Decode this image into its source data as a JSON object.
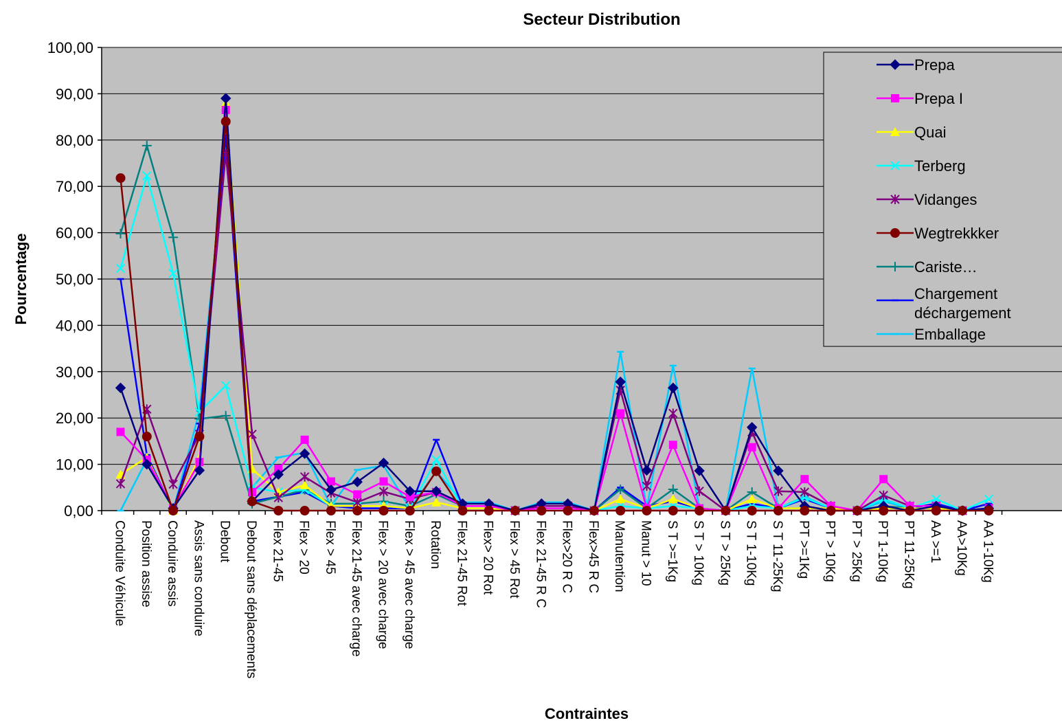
{
  "chart_data": {
    "type": "line",
    "title": "Secteur Distribution",
    "xlabel": "Contraintes",
    "ylabel": "Pourcentage",
    "ylim": [
      0,
      100
    ],
    "yticks": [
      "0,00",
      "10,00",
      "20,00",
      "30,00",
      "40,00",
      "50,00",
      "60,00",
      "70,00",
      "80,00",
      "90,00",
      "100,00"
    ],
    "grid": "horizontal",
    "legend_position": "top-right",
    "plot_background": "#c0c0c0",
    "categories": [
      "Conduite Véhicule",
      "Position assise",
      "Conduire assis",
      "Assis sans conduire",
      "Debout",
      "Debout sans déplacements",
      "Flex 21-45",
      "Flex > 20",
      "Flex > 45",
      "Flex 21-45 avec charge",
      "Flex > 20 avec charge",
      "Flex > 45 avec charge",
      "Rotation",
      "Flex 21-45 Rot",
      "Flex> 20 Rot",
      "Flex > 45 Rot",
      "Flex 21-45 R C",
      "Flex>20 R C",
      "Flex>45 R C",
      "Manutention",
      "Manut > 10",
      "S T >=1Kg",
      "S T > 10Kg",
      "S T > 25Kg",
      "S T 1-10Kg",
      "S T 11-25Kg",
      "PT >=1Kg",
      "PT > 10Kg",
      "PT > 25Kg",
      "PT 1-10Kg",
      "PT 11-25Kg",
      "AA >=1",
      "AA>10Kg",
      "AA 1-10Kg"
    ],
    "series": [
      {
        "name": "Prepa",
        "color": "#000080",
        "marker": "diamond",
        "values": [
          26.5,
          10,
          0.5,
          8.7,
          89,
          2,
          7.8,
          12.3,
          4.5,
          6.2,
          10.3,
          4.2,
          4.2,
          1.5,
          1.5,
          0,
          1.5,
          1.5,
          0,
          27.8,
          8.7,
          26.5,
          8.6,
          0,
          18,
          8.6,
          1,
          0,
          0,
          1,
          0,
          1,
          0,
          0.5
        ]
      },
      {
        "name": "Prepa I",
        "color": "#ff00ff",
        "marker": "square",
        "values": [
          17,
          11,
          0.5,
          10.5,
          86.5,
          4,
          9,
          15.3,
          6.3,
          3.5,
          6.3,
          3,
          4,
          1,
          1,
          0,
          0.5,
          0.5,
          0,
          21,
          0.5,
          14.2,
          0.5,
          0,
          13.7,
          0.5,
          6.8,
          1,
          0,
          6.8,
          1,
          1,
          0,
          0.5
        ]
      },
      {
        "name": "Quai",
        "color": "#ffff00",
        "marker": "triangle",
        "values": [
          7.8,
          11.5,
          0,
          11.5,
          88,
          9,
          4,
          5.5,
          1,
          1,
          1,
          0.5,
          1.8,
          0.5,
          0.5,
          0,
          0.5,
          0.5,
          0,
          2.5,
          0.5,
          2.5,
          0.5,
          0,
          2.5,
          0.5,
          0.5,
          0.5,
          0,
          0.5,
          0.5,
          0.5,
          0,
          0.5
        ]
      },
      {
        "name": "Terberg",
        "color": "#00ffff",
        "marker": "x",
        "values": [
          52.3,
          72.3,
          51.2,
          21.3,
          27,
          5,
          4,
          4.5,
          1,
          1,
          1,
          0.5,
          11,
          0.5,
          0.5,
          0,
          0.5,
          0.5,
          0,
          1,
          0.5,
          1,
          0.5,
          0,
          1,
          0.5,
          2.8,
          0.5,
          0,
          2.5,
          0.5,
          2.5,
          0,
          2.5
        ]
      },
      {
        "name": "Vidanges",
        "color": "#800080",
        "marker": "star",
        "values": [
          5.8,
          21.9,
          5.7,
          16.5,
          77,
          16.5,
          2.8,
          7.3,
          3.8,
          1.8,
          4.1,
          2.5,
          4,
          1,
          1,
          0,
          1,
          1,
          0,
          26,
          5.3,
          21,
          4.2,
          0,
          17,
          4.2,
          4,
          1,
          0,
          3.3,
          1,
          1,
          0,
          0.5
        ]
      },
      {
        "name": "Wegtrekkker",
        "color": "#800000",
        "marker": "circle",
        "values": [
          71.8,
          16,
          0,
          16,
          84,
          2,
          0,
          0,
          0,
          0,
          0,
          0,
          8.5,
          0,
          0,
          0,
          0,
          0,
          0,
          0,
          0,
          0,
          0,
          0,
          0,
          0,
          0,
          0,
          0,
          0,
          0,
          0,
          0,
          0
        ]
      },
      {
        "name": "Cariste…",
        "color": "#008080",
        "marker": "plus",
        "values": [
          59.8,
          78.8,
          59,
          19.8,
          20.5,
          1.5,
          3,
          4.5,
          1.5,
          1.5,
          2,
          1,
          3.5,
          1,
          1,
          0,
          1,
          1,
          0,
          4.6,
          0.5,
          4.6,
          0.5,
          0,
          4,
          0.5,
          0.5,
          0.5,
          0,
          1,
          0.5,
          0.5,
          0,
          0.5
        ]
      },
      {
        "name": "Chargement déchargement",
        "color": "#0000ff",
        "marker": "dash",
        "values": [
          50,
          12,
          0,
          18.8,
          81,
          2,
          3,
          4,
          1,
          0.5,
          0.5,
          0.5,
          15.3,
          1,
          1,
          0,
          1,
          1,
          0,
          5,
          1,
          2,
          0.5,
          0,
          1.5,
          0.5,
          2.5,
          0.5,
          0,
          2.5,
          0.5,
          1.5,
          0,
          1.5
        ]
      },
      {
        "name": "Emballage",
        "color": "#00ccff",
        "marker": "dash",
        "values": [
          0,
          11,
          0,
          21.5,
          80.5,
          5,
          11.5,
          12.5,
          1,
          8.8,
          9.7,
          0.5,
          8.5,
          1.8,
          1.8,
          0,
          1.8,
          1.8,
          0,
          34.3,
          0.5,
          31.3,
          0.5,
          0,
          30.7,
          0.5,
          3,
          0.5,
          0,
          2,
          0.5,
          1.5,
          0,
          1.5
        ]
      }
    ]
  }
}
